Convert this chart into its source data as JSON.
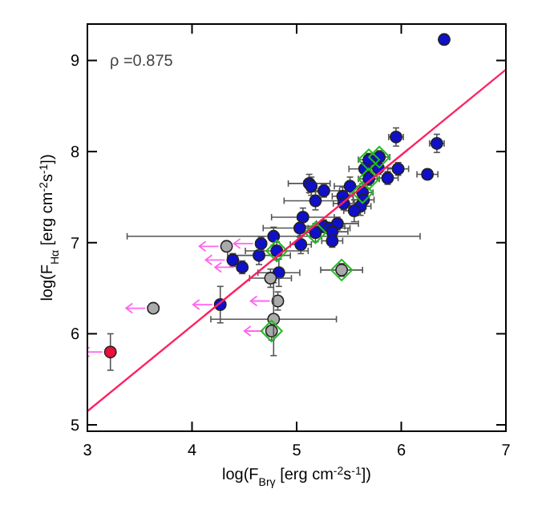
{
  "chart_data": {
    "type": "scatter",
    "xlabel": "log(F$_{Brγ}$ [erg cm$^{-2}$s$^{-1}$])",
    "ylabel": "log(F$_{Hα}$ [erg cm$^{-2}$s$^{-1}$])",
    "xlim": [
      3,
      7
    ],
    "ylim": [
      4.93,
      9.4
    ],
    "xticks": [
      3,
      4,
      5,
      6,
      7
    ],
    "yticks": [
      5,
      6,
      7,
      8,
      9
    ],
    "grid": false,
    "marker": "circle",
    "annotations": [
      "ρ =0.875"
    ],
    "series": [
      {
        "color": "#1010c8",
        "x": [
          6.41,
          5.95,
          6.34,
          5.69,
          5.79,
          5.65,
          5.78,
          5.97,
          6.25,
          5.87,
          5.69,
          5.12,
          5.14,
          5.26,
          5.51,
          5.44,
          5.63,
          5.64,
          5.18,
          5.45,
          5.61,
          5.55,
          5.06,
          5.03,
          5.26,
          5.31,
          5.39,
          5.34,
          5.18,
          5.34,
          4.78,
          4.81,
          5.04,
          4.64,
          4.83
        ],
        "values": [
          9.23,
          8.16,
          8.09,
          7.91,
          7.94,
          7.81,
          7.82,
          7.81,
          7.75,
          7.71,
          7.7,
          7.65,
          7.62,
          7.57,
          7.62,
          7.51,
          7.55,
          7.47,
          7.46,
          7.43,
          7.4,
          7.35,
          7.28,
          7.16,
          7.18,
          7.16,
          7.21,
          7.12,
          7.11,
          7.02,
          7.07,
          6.91,
          6.98,
          6.86,
          6.67
        ],
        "errors": [
          null,
          0.1,
          0.1,
          0.07,
          0.07,
          0.07,
          0.07,
          0.07,
          0.05,
          0.07,
          0.07,
          0.1,
          0.1,
          0.07,
          0.1,
          0.1,
          0.1,
          0.1,
          0.1,
          0.07,
          0.1,
          0.12,
          0.1,
          0.1,
          0.07,
          null,
          0.07,
          0.07,
          0.1,
          0.07,
          0.1,
          0.1,
          0.1,
          0.1,
          0.15
        ],
        "xerrors": [
          null,
          0.07,
          0.07,
          0.1,
          0.1,
          0.15,
          0.15,
          0.1,
          0.1,
          0.1,
          0.1,
          0.2,
          null,
          0.15,
          0.15,
          0.1,
          0.1,
          0.1,
          0.3,
          0.1,
          0.1,
          0.1,
          0.3,
          0.35,
          0.2,
          0.2,
          0.2,
          0.15,
          0.15,
          0.1,
          1.4,
          0.3,
          0.1,
          0.3,
          0.2
        ]
      },
      {
        "colors": [
          "#aaaaaa",
          "#1010c8",
          "#1010c8",
          "#1010c8",
          "#aaaaaa",
          "#1010c8",
          "#aaaaaa",
          "#aaaaaa"
        ],
        "x": [
          4.33,
          4.66,
          4.39,
          4.48,
          3.63,
          4.27,
          4.82,
          4.76
        ],
        "values": [
          6.96,
          6.99,
          6.81,
          6.73,
          6.28,
          6.32,
          6.36,
          6.03
        ],
        "errors": [
          0.05,
          0.07,
          0.07,
          0.07,
          0.05,
          0.2,
          0.1,
          0.1
        ]
      },
      {
        "color": "#aaaaaa",
        "x": [
          5.43,
          4.75,
          4.78
        ],
        "values": [
          6.7,
          6.61,
          6.16
        ],
        "errors": [
          0.07,
          0.1,
          0.4
        ],
        "xerrors": [
          0.2,
          0.2,
          0.6
        ]
      },
      {
        "color": "#e8103c",
        "x": [
          3.22
        ],
        "values": [
          5.8
        ],
        "errors": [
          0.2
        ]
      },
      {
        "color": "#22bb22",
        "marker": "diamond",
        "x": [
          5.69,
          5.79,
          5.69,
          5.63,
          5.18,
          4.81,
          5.43,
          4.76
        ],
        "values": [
          7.91,
          7.94,
          7.7,
          7.55,
          7.11,
          6.91,
          6.7,
          6.03
        ]
      },
      {
        "type": "line",
        "marker": "none",
        "color": "#ff2060",
        "x": [
          3,
          7
        ],
        "values": [
          5.15,
          8.9
        ]
      }
    ]
  }
}
